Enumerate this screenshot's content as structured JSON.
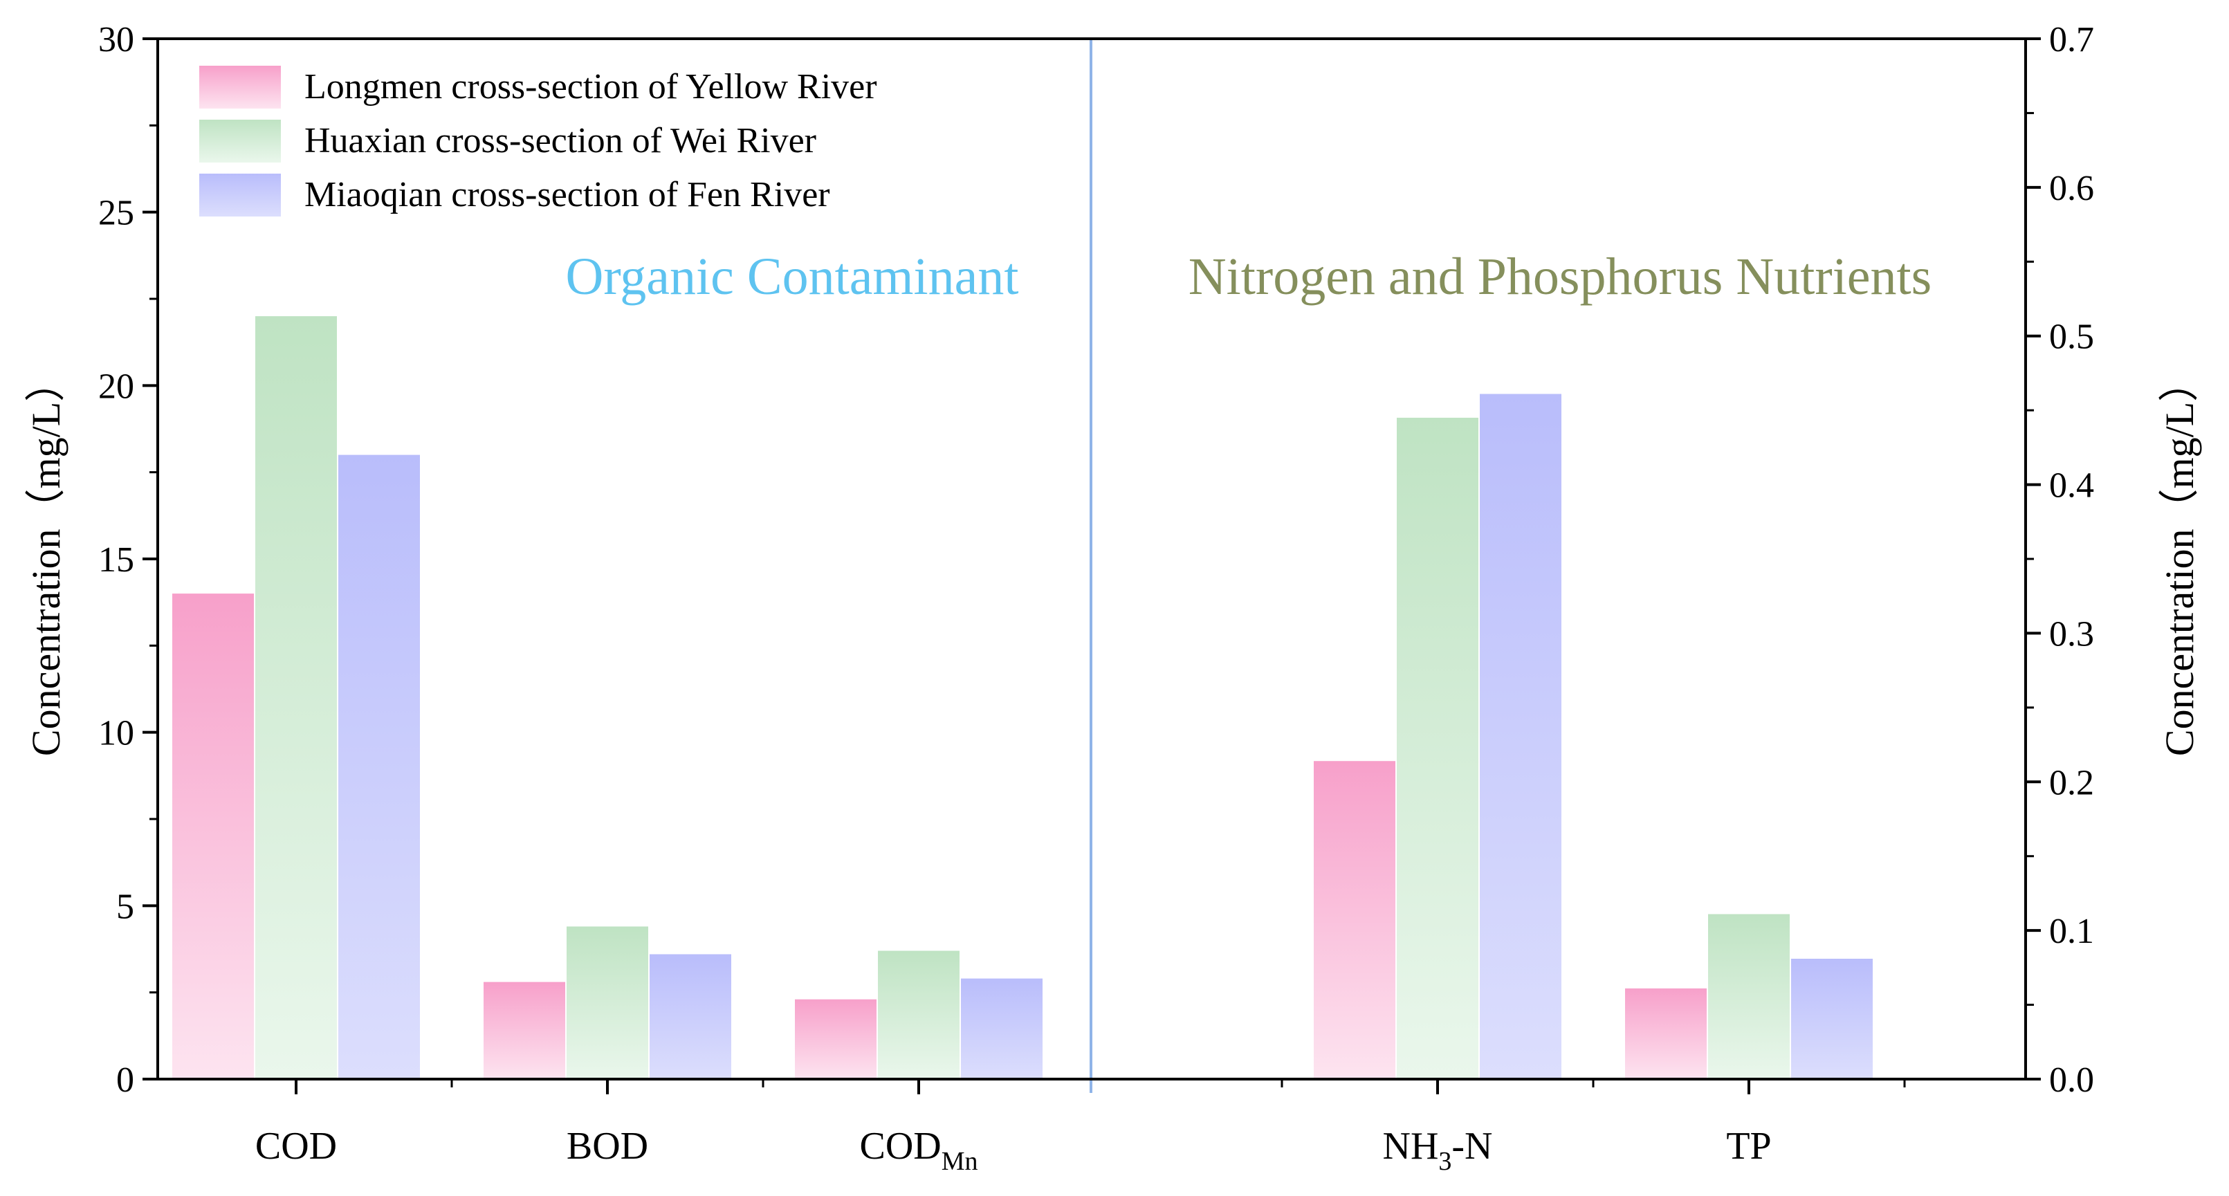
{
  "chart_data": {
    "type": "bar",
    "categories": [
      {
        "id": "COD",
        "label": "COD",
        "sub": "",
        "axis": "left"
      },
      {
        "id": "BOD",
        "label": "BOD",
        "sub": "",
        "axis": "left"
      },
      {
        "id": "CODMn",
        "label": "COD",
        "sub": "Mn",
        "axis": "left"
      },
      {
        "id": "NH3N",
        "label": "NH",
        "sub": "3",
        "suffix": "-N",
        "axis": "right"
      },
      {
        "id": "TP",
        "label": "TP",
        "sub": "",
        "axis": "right"
      }
    ],
    "series": [
      {
        "name": "Longmen cross-section of Yellow River",
        "color_top": "#f7a0ca",
        "color_bottom": "#fde4f0",
        "values": [
          14.0,
          2.8,
          2.3,
          0.214,
          0.061
        ]
      },
      {
        "name": "Huaxian cross-section of Wei River",
        "color_top": "#bfe3c3",
        "color_bottom": "#eaf7ec",
        "values": [
          22.0,
          4.4,
          3.7,
          0.445,
          0.111
        ]
      },
      {
        "name": "Miaoqian cross-section of Fen River",
        "color_top": "#b9bdfb",
        "color_bottom": "#dcdefd",
        "values": [
          18.0,
          3.6,
          2.9,
          0.461,
          0.081
        ]
      }
    ],
    "left_axis": {
      "label": "Concentration（mg/L）",
      "ylim": [
        0,
        30
      ],
      "ticks": [
        "0",
        "5",
        "10",
        "15",
        "20",
        "25",
        "30"
      ]
    },
    "right_axis": {
      "label": "Concentration（mg/L）",
      "ylim": [
        0,
        0.7
      ],
      "ticks": [
        "0.0",
        "0.1",
        "0.2",
        "0.3",
        "0.4",
        "0.5",
        "0.6",
        "0.7"
      ]
    },
    "sections": [
      {
        "title": "Organic Contaminant",
        "color": "#5ec3f0"
      },
      {
        "title": "Nitrogen and Phosphorus Nutrients",
        "color": "#858f5c"
      }
    ],
    "divider_color": "#8fb4e8",
    "legend_position": "top-left"
  }
}
